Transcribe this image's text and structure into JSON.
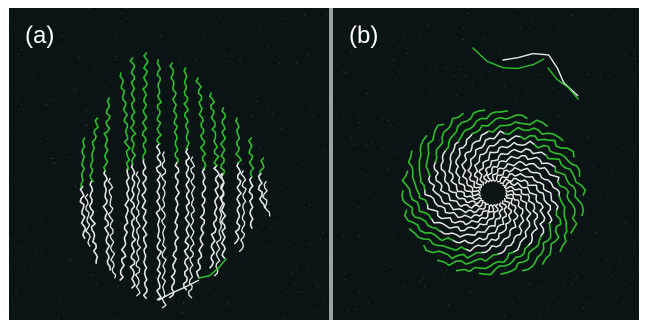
{
  "panels": [
    {
      "id": "a",
      "label": "(a)"
    },
    {
      "id": "b",
      "label": "(b)"
    }
  ],
  "colors": {
    "background": "#0a1414",
    "chain_white": "#e6e6e6",
    "chain_green": "#2fbf2f",
    "divider": "#9aa3a3"
  }
}
